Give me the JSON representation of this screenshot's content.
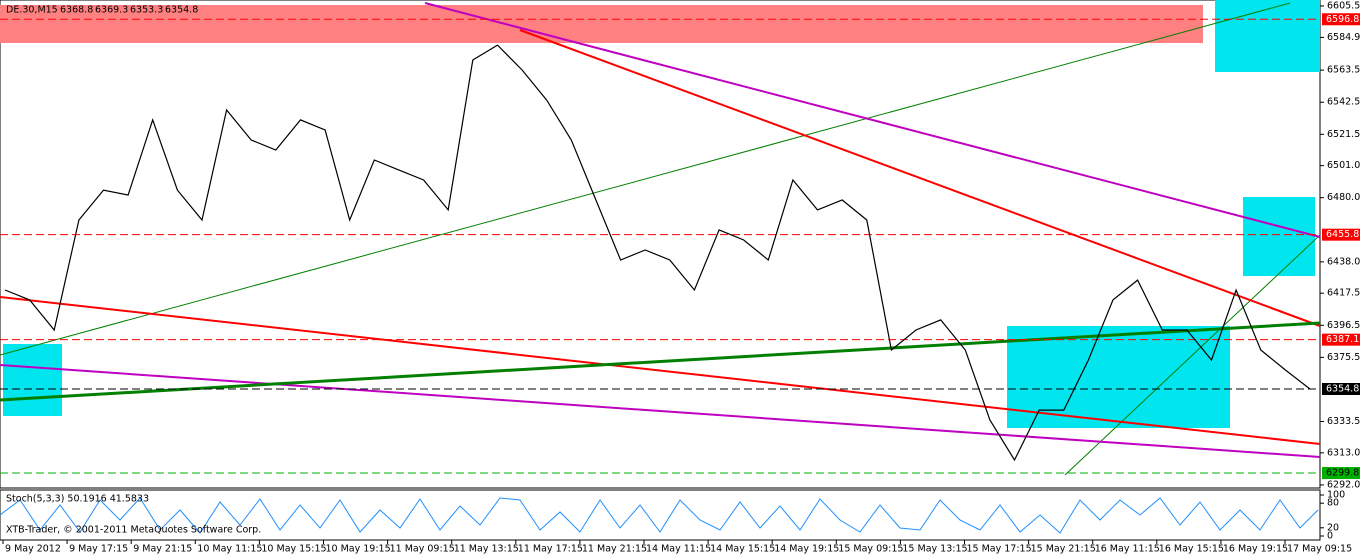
{
  "chart_data": [
    {
      "type": "line",
      "title": "DE.30,M15",
      "ohlc": [
        6368.8,
        6369.3,
        6353.3,
        6354.8
      ],
      "color": "#000000",
      "values": [
        6419.6,
        6413.1,
        6393.4,
        6465.4,
        6485.0,
        6481.8,
        6530.9,
        6485.0,
        6465.4,
        6537.4,
        6517.8,
        6511.2,
        6530.9,
        6524.3,
        6465.4,
        6504.7,
        6498.1,
        6491.6,
        6472.0,
        6570.1,
        6579.9,
        6563.6,
        6543.9,
        6517.8,
        6478.5,
        6439.2,
        6445.8,
        6439.2,
        6419.6,
        6458.9,
        6452.3,
        6439.2,
        6491.6,
        6472.0,
        6478.5,
        6465.4,
        6380.3,
        6393.4,
        6400.0,
        6380.3,
        6334.5,
        6308.3,
        6341.0,
        6341.0,
        6373.8,
        6413.1,
        6426.1,
        6393.4,
        6393.4,
        6373.8,
        6419.6,
        6380.3,
        6367.2,
        6354.8
      ],
      "ylim": [
        6290.0,
        6609.4
      ],
      "yticks": [
        {
          "value": 6605.5,
          "label": "6605.5"
        },
        {
          "value": 6584.9,
          "label": "6584.9"
        },
        {
          "value": 6563.5,
          "label": "6563.5"
        },
        {
          "value": 6542.5,
          "label": "6542.5"
        },
        {
          "value": 6521.5,
          "label": "6521.5"
        },
        {
          "value": 6501.0,
          "label": "6501.0"
        },
        {
          "value": 6480.0,
          "label": "6480.0"
        },
        {
          "value": 6438.0,
          "label": "6438.0"
        },
        {
          "value": 6417.5,
          "label": "6417.5"
        },
        {
          "value": 6396.5,
          "label": "6396.5"
        },
        {
          "value": 6375.5,
          "label": "6375.5"
        },
        {
          "value": 6333.5,
          "label": "6333.5"
        },
        {
          "value": 6313.0,
          "label": "6313.0"
        },
        {
          "value": 6292.0,
          "label": "6292.0"
        }
      ],
      "levels": [
        {
          "value": 6596.8,
          "color": "#ff0000"
        },
        {
          "value": 6455.8,
          "color": "#ff0000"
        },
        {
          "value": 6387.1,
          "color": "#ff0000"
        },
        {
          "value": 6354.8,
          "color": "#000000"
        },
        {
          "value": 6299.8,
          "color": "#00b000"
        }
      ],
      "x_labels": [
        "9 May 2012",
        "9 May 17:15",
        "9 May 21:15",
        "10 May 11:15",
        "10 May 15:15",
        "10 May 19:15",
        "11 May 09:15",
        "11 May 13:15",
        "11 May 17:15",
        "11 May 21:15",
        "14 May 11:15",
        "14 May 15:15",
        "14 May 19:15",
        "15 May 09:15",
        "15 May 13:15",
        "15 May 17:15",
        "15 May 21:15",
        "16 May 11:15",
        "16 May 15:15",
        "16 May 19:15",
        "17 May 09:15"
      ]
    },
    {
      "type": "oscillator",
      "title": "Stoch(5,3,3) 50.1916 41.5833",
      "ylim": [
        0,
        100
      ],
      "yticks": [
        100,
        80,
        20,
        0
      ]
    }
  ],
  "footer": "XTB-Trader, © 2001-2011 MetaQuotes Software Corp."
}
